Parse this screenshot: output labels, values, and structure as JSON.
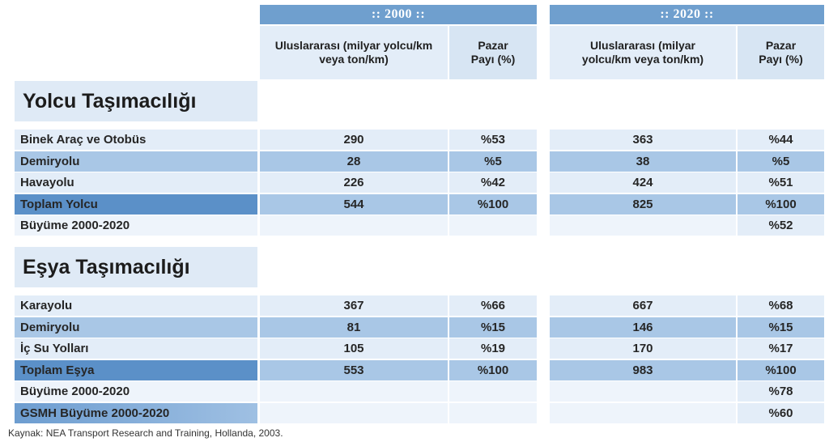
{
  "header": {
    "year_2000": ":: 2000 ::",
    "year_2020": ":: 2020 ::",
    "col_international": "Uluslararası (milyar yolcu/km veya ton/km)",
    "col_share": "Pazar Payı (%)"
  },
  "passenger": {
    "title": "Yolcu Taşımacılığı",
    "rows": [
      {
        "label": "Binek Araç ve Otobüs",
        "v2000": "290",
        "s2000": "%53",
        "v2020": "363",
        "s2020": "%44"
      },
      {
        "label": "Demiryolu",
        "v2000": "28",
        "s2000": "%5",
        "v2020": "38",
        "s2020": "%5"
      },
      {
        "label": "Havayolu",
        "v2000": "226",
        "s2000": "%42",
        "v2020": "424",
        "s2020": "%51"
      },
      {
        "label": "Toplam Yolcu",
        "v2000": "544",
        "s2000": "%100",
        "v2020": "825",
        "s2020": "%100"
      },
      {
        "label": "Büyüme 2000-2020",
        "v2000": "",
        "s2000": "",
        "v2020": "",
        "s2020": "%52"
      }
    ]
  },
  "freight": {
    "title": "Eşya Taşımacılığı",
    "rows": [
      {
        "label": "Karayolu",
        "v2000": "367",
        "s2000": "%66",
        "v2020": "667",
        "s2020": "%68"
      },
      {
        "label": "Demiryolu",
        "v2000": "81",
        "s2000": "%15",
        "v2020": "146",
        "s2020": "%15"
      },
      {
        "label": "İç Su Yolları",
        "v2000": "105",
        "s2000": "%19",
        "v2020": "170",
        "s2020": "%17"
      },
      {
        "label": "Toplam Eşya",
        "v2000": "553",
        "s2000": "%100",
        "v2020": "983",
        "s2020": "%100"
      },
      {
        "label": "Büyüme 2000-2020",
        "v2000": "",
        "s2000": "",
        "v2020": "",
        "s2020": "%78"
      },
      {
        "label": "GSMH Büyüme 2000-2020",
        "v2000": "",
        "s2000": "",
        "v2020": "",
        "s2020": "%60"
      }
    ]
  },
  "source": "Kaynak: NEA Transport Research and Training, Hollanda, 2003."
}
